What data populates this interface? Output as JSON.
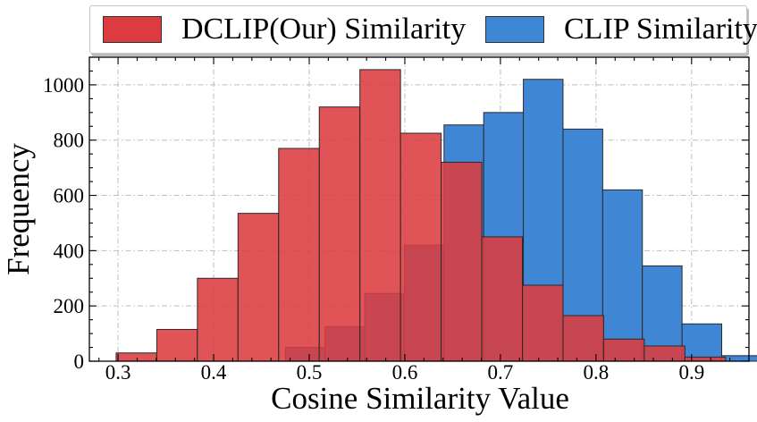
{
  "chart_data": {
    "type": "bar",
    "subtype": "overlapping-histogram",
    "title": "",
    "xlabel": "Cosine Similarity Value",
    "ylabel": "Frequency",
    "xlim": [
      0.27,
      0.96
    ],
    "ylim": [
      0,
      1100
    ],
    "xticks": [
      0.3,
      0.4,
      0.5,
      0.6,
      0.7,
      0.8,
      0.9
    ],
    "xtick_labels": [
      "0.3",
      "0.4",
      "0.5",
      "0.6",
      "0.7",
      "0.8",
      "0.9"
    ],
    "yticks": [
      0,
      200,
      400,
      600,
      800,
      1000
    ],
    "ytick_labels": [
      "0",
      "200",
      "400",
      "600",
      "800",
      "1000"
    ],
    "grid": true,
    "legend_position": "top-center, outside",
    "series": [
      {
        "name": "CLIP Similarity",
        "color": "#3f87d4",
        "bin_width": 0.0415,
        "bins": [
          {
            "x0": 0.475,
            "x1": 0.5165,
            "value": 50
          },
          {
            "x0": 0.5165,
            "x1": 0.558,
            "value": 125
          },
          {
            "x0": 0.558,
            "x1": 0.5995,
            "value": 245
          },
          {
            "x0": 0.5995,
            "x1": 0.641,
            "value": 420
          },
          {
            "x0": 0.641,
            "x1": 0.6825,
            "value": 855
          },
          {
            "x0": 0.6825,
            "x1": 0.724,
            "value": 900
          },
          {
            "x0": 0.724,
            "x1": 0.7655,
            "value": 1020
          },
          {
            "x0": 0.7655,
            "x1": 0.807,
            "value": 840
          },
          {
            "x0": 0.807,
            "x1": 0.8485,
            "value": 620
          },
          {
            "x0": 0.8485,
            "x1": 0.89,
            "value": 345
          },
          {
            "x0": 0.89,
            "x1": 0.9315,
            "value": 135
          },
          {
            "x0": 0.9315,
            "x1": 0.973,
            "value": 20
          }
        ]
      },
      {
        "name": "DCLIP(Our) Similarity",
        "color": "#dc3c40",
        "bin_width": 0.0425,
        "bins": [
          {
            "x0": 0.298,
            "x1": 0.3405,
            "value": 30
          },
          {
            "x0": 0.3405,
            "x1": 0.383,
            "value": 115
          },
          {
            "x0": 0.383,
            "x1": 0.4255,
            "value": 300
          },
          {
            "x0": 0.4255,
            "x1": 0.468,
            "value": 535
          },
          {
            "x0": 0.468,
            "x1": 0.5105,
            "value": 770
          },
          {
            "x0": 0.5105,
            "x1": 0.553,
            "value": 920
          },
          {
            "x0": 0.553,
            "x1": 0.5955,
            "value": 1055
          },
          {
            "x0": 0.5955,
            "x1": 0.638,
            "value": 825
          },
          {
            "x0": 0.638,
            "x1": 0.6805,
            "value": 720
          },
          {
            "x0": 0.6805,
            "x1": 0.723,
            "value": 450
          },
          {
            "x0": 0.723,
            "x1": 0.7655,
            "value": 275
          },
          {
            "x0": 0.7655,
            "x1": 0.808,
            "value": 165
          },
          {
            "x0": 0.808,
            "x1": 0.8505,
            "value": 80
          },
          {
            "x0": 0.8505,
            "x1": 0.893,
            "value": 55
          },
          {
            "x0": 0.893,
            "x1": 0.9355,
            "value": 15
          }
        ]
      }
    ]
  }
}
